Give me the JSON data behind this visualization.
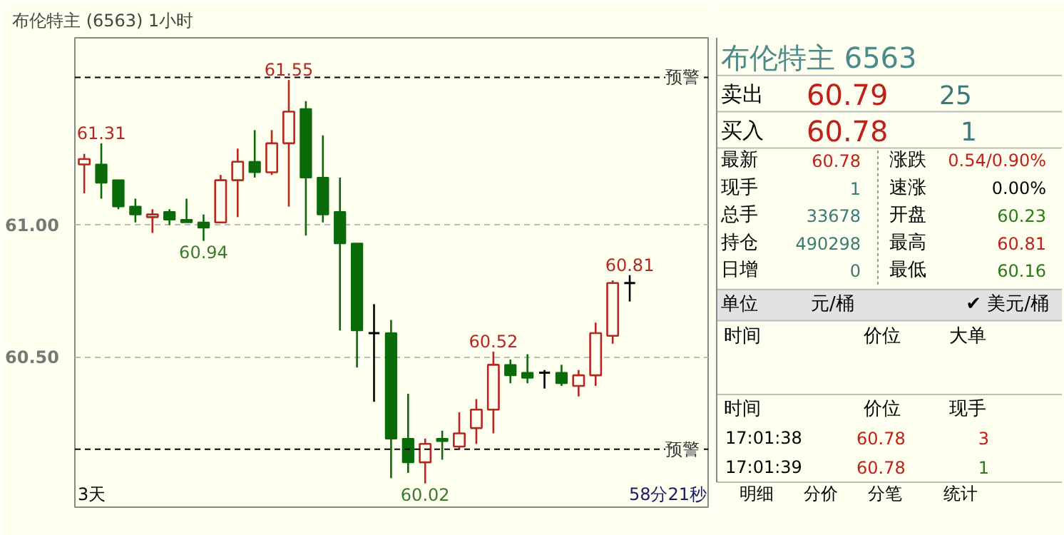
{
  "chart_data": [
    {
      "type": "candlestick",
      "title": "布伦特主 (6563)",
      "subtitle": "1小时",
      "categories": [
        null,
        null,
        null,
        null,
        null,
        null,
        null,
        null,
        null,
        null,
        null,
        null,
        null,
        null,
        null,
        null,
        null,
        null,
        null,
        null,
        null,
        null,
        null,
        null,
        null,
        null,
        null,
        null,
        null,
        null,
        null,
        null,
        null
      ],
      "ohlc": [
        [
          61.23,
          61.27,
          61.12,
          61.25
        ],
        [
          61.23,
          61.31,
          61.1,
          61.16
        ],
        [
          61.17,
          61.17,
          61.06,
          61.07
        ],
        [
          61.07,
          61.1,
          61.01,
          61.04
        ],
        [
          61.03,
          61.06,
          60.97,
          61.04
        ],
        [
          61.05,
          61.06,
          61.0,
          61.02
        ],
        [
          61.02,
          61.1,
          61.01,
          61.01
        ],
        [
          61.01,
          61.04,
          60.94,
          60.99
        ],
        [
          61.01,
          61.19,
          61.01,
          61.17
        ],
        [
          61.17,
          61.29,
          61.03,
          61.24
        ],
        [
          61.24,
          61.36,
          61.18,
          61.2
        ],
        [
          61.2,
          61.36,
          61.19,
          61.31
        ],
        [
          61.31,
          61.55,
          61.07,
          61.43
        ],
        [
          61.44,
          61.47,
          60.96,
          61.18
        ],
        [
          61.18,
          61.34,
          61.01,
          61.04
        ],
        [
          61.05,
          61.18,
          60.6,
          60.93
        ],
        [
          60.93,
          60.93,
          60.46,
          60.6
        ],
        [
          60.59,
          60.7,
          60.33,
          60.59
        ],
        [
          60.59,
          60.64,
          60.04,
          60.19
        ],
        [
          60.19,
          60.36,
          60.06,
          60.1
        ],
        [
          60.1,
          60.19,
          60.02,
          60.17
        ],
        [
          60.19,
          60.22,
          60.11,
          60.18
        ],
        [
          60.16,
          60.29,
          60.15,
          60.21
        ],
        [
          60.23,
          60.34,
          60.17,
          60.3
        ],
        [
          60.3,
          60.52,
          60.21,
          60.47
        ],
        [
          60.47,
          60.49,
          60.4,
          60.43
        ],
        [
          60.44,
          60.51,
          60.4,
          60.42
        ],
        [
          60.44,
          60.45,
          60.38,
          60.44
        ],
        [
          60.44,
          60.47,
          60.39,
          60.4
        ],
        [
          60.39,
          60.45,
          60.35,
          60.43
        ],
        [
          60.43,
          60.63,
          60.39,
          60.59
        ],
        [
          60.58,
          60.79,
          60.55,
          60.78
        ],
        [
          60.78,
          60.81,
          60.71,
          60.78
        ]
      ],
      "colors": [
        "#b5271f",
        "#0b6b0b",
        "#0b6b0b",
        "#0b6b0b",
        "#b5271f",
        "#0b6b0b",
        "#0b6b0b",
        "#0b6b0b",
        "#b5271f",
        "#b5271f",
        "#0b6b0b",
        "#b5271f",
        "#b5271f",
        "#0b6b0b",
        "#0b6b0b",
        "#0b6b0b",
        "#0b6b0b",
        "#000000",
        "#0b6b0b",
        "#0b6b0b",
        "#b5271f",
        "#0b6b0b",
        "#b5271f",
        "#b5271f",
        "#b5271f",
        "#0b6b0b",
        "#0b6b0b",
        "#000000",
        "#0b6b0b",
        "#b5271f",
        "#b5271f",
        "#b5271f",
        "#000000"
      ],
      "ylim": [
        59.93,
        61.71
      ],
      "yticks": [
        {
          "value": 61.0,
          "label": "61.00"
        },
        {
          "value": 60.5,
          "label": "60.50"
        }
      ],
      "grid": "y",
      "ref_lines": [
        {
          "axis": "y",
          "value": 61.56,
          "label": "预警",
          "color": "#000000",
          "line_style": "dashed"
        },
        {
          "axis": "y",
          "value": 60.15,
          "label": "预警",
          "color": "#000000",
          "line_style": "dashed"
        }
      ],
      "annotations": [
        {
          "text": "61.31",
          "y": 61.31
        },
        {
          "text": "61.55",
          "y": 61.55
        },
        {
          "text": "60.94",
          "y": 60.94
        },
        {
          "text": "60.02",
          "y": 60.02
        },
        {
          "text": "60.52",
          "y": 60.52
        },
        {
          "text": "60.81",
          "y": 60.81
        },
        "3天",
        "58分21秒"
      ]
    },
    {
      "type": "other",
      "title": "布伦特主  6563",
      "annotations": [
        "卖出",
        "60.79",
        "25",
        "买入",
        "60.78",
        "1",
        "最新",
        "60.78",
        "涨跌",
        "0.54/0.90%",
        "现手",
        "1",
        "速涨",
        "0.00%",
        "总手",
        "33678",
        "开盘",
        "60.23",
        "持仓",
        "490298",
        "最高",
        "60.81",
        "日增",
        "0",
        "最低",
        "60.16",
        "单位",
        "元/桶",
        "✔ 美元/桶",
        "时间",
        "价位",
        "大单",
        "时间",
        "价位",
        "现手",
        "17:01:38",
        "60.78",
        "3",
        "17:01:39",
        "60.78",
        "1",
        "明细",
        "分价",
        "分笔",
        "统计"
      ]
    }
  ]
}
